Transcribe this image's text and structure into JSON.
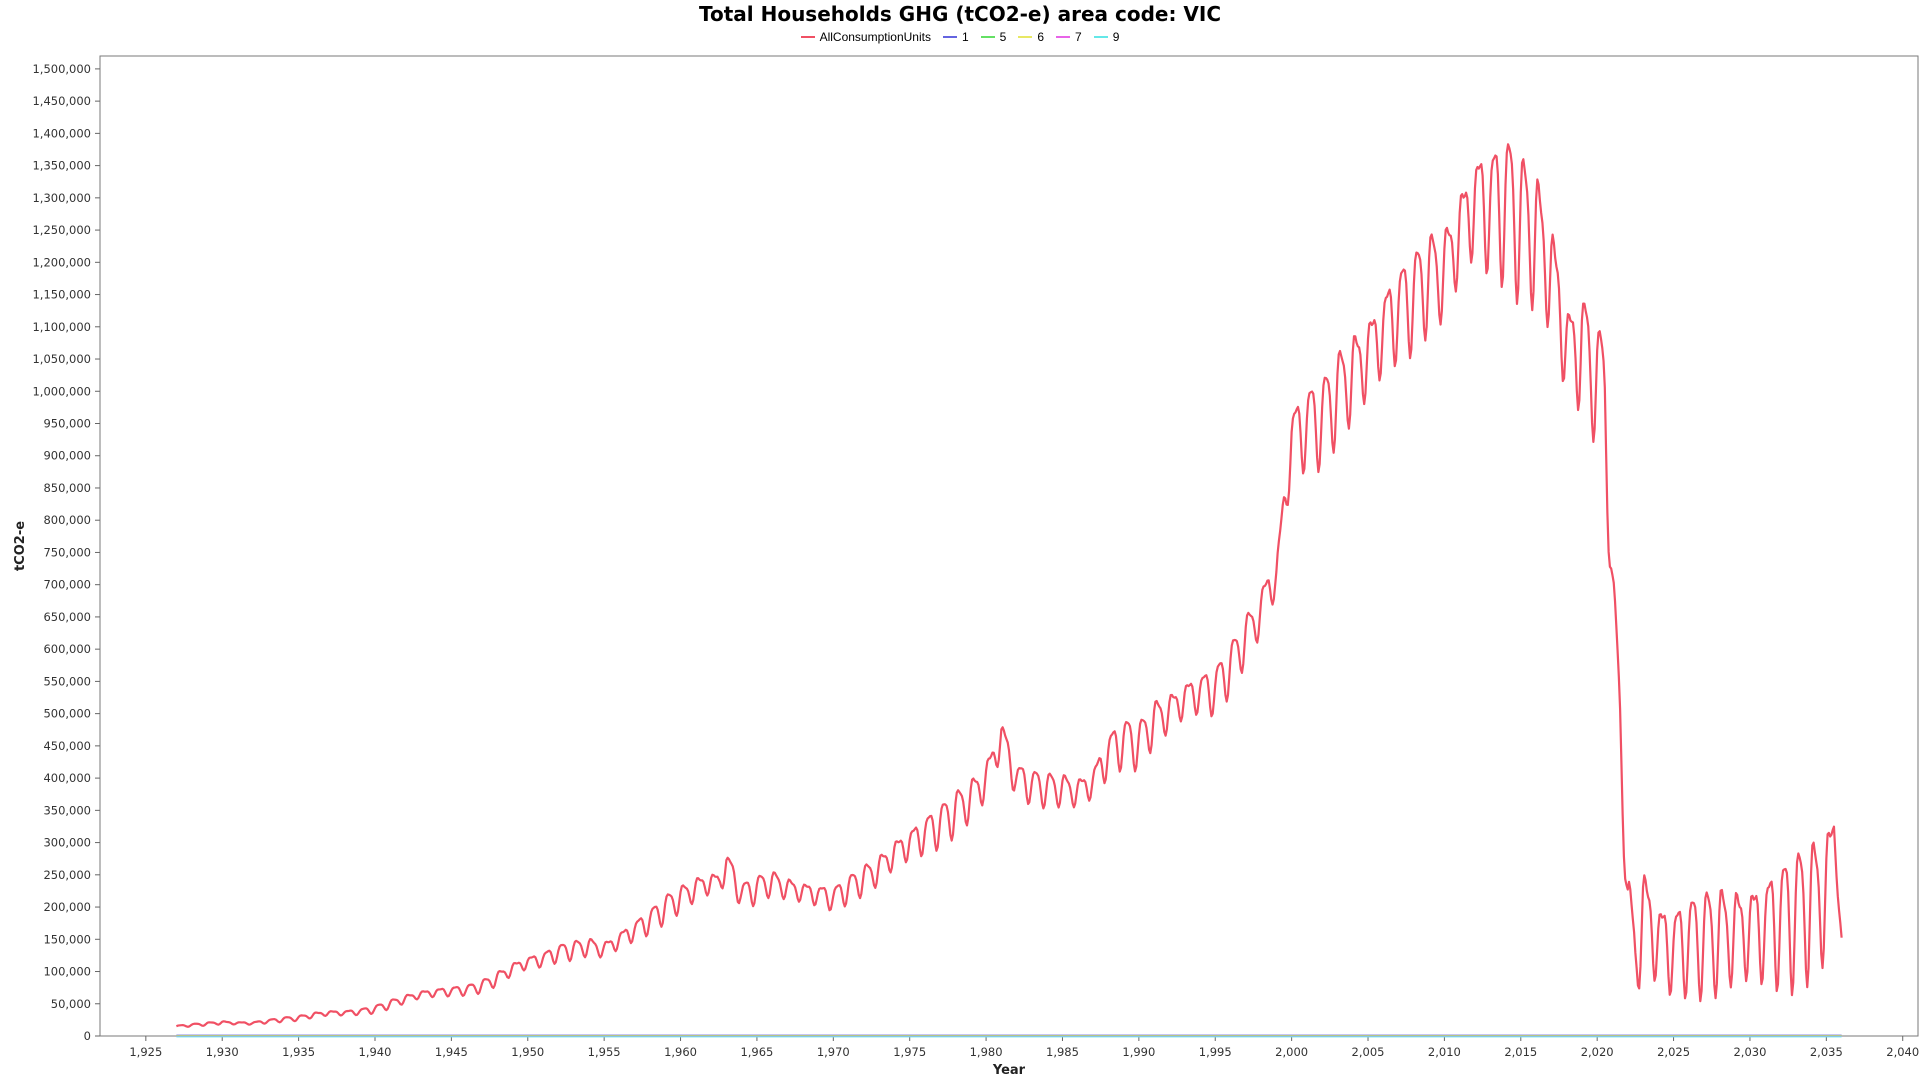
{
  "chart_data": {
    "type": "line",
    "title": "Total Households GHG (tCO2-e) area code: VIC",
    "xlabel": "Year",
    "ylabel": "tCO2-e",
    "xlim": [
      1922,
      2041
    ],
    "ylim": [
      0,
      1520000
    ],
    "x_ticks": [
      1925,
      1930,
      1935,
      1940,
      1945,
      1950,
      1955,
      1960,
      1965,
      1970,
      1975,
      1980,
      1985,
      1990,
      1995,
      2000,
      2005,
      2010,
      2015,
      2020,
      2025,
      2030,
      2035,
      2040
    ],
    "x_tick_labels": [
      "1,925",
      "1,930",
      "1,935",
      "1,940",
      "1,945",
      "1,950",
      "1,955",
      "1,960",
      "1,965",
      "1,970",
      "1,975",
      "1,980",
      "1,985",
      "1,990",
      "1,995",
      "2,000",
      "2,005",
      "2,010",
      "2,015",
      "2,020",
      "2,025",
      "2,030",
      "2,035",
      "2,040"
    ],
    "y_ticks": [
      0,
      50000,
      100000,
      150000,
      200000,
      250000,
      300000,
      350000,
      400000,
      450000,
      500000,
      550000,
      600000,
      650000,
      700000,
      750000,
      800000,
      850000,
      900000,
      950000,
      1000000,
      1050000,
      1100000,
      1150000,
      1200000,
      1250000,
      1300000,
      1350000,
      1400000,
      1450000,
      1500000
    ],
    "y_tick_labels": [
      "0",
      "50,000",
      "100,000",
      "150,000",
      "200,000",
      "250,000",
      "300,000",
      "350,000",
      "400,000",
      "450,000",
      "500,000",
      "550,000",
      "600,000",
      "650,000",
      "700,000",
      "750,000",
      "800,000",
      "850,000",
      "900,000",
      "950,000",
      "1,000,000",
      "1,050,000",
      "1,100,000",
      "1,150,000",
      "1,200,000",
      "1,250,000",
      "1,300,000",
      "1,350,000",
      "1,400,000",
      "1,450,000",
      "1,500,000"
    ],
    "legend_position": "top-center",
    "grid": false,
    "series": [
      {
        "name": "AllConsumptionUnits",
        "color": "#f05064",
        "x": [
          1927,
          1928,
          1929,
          1930,
          1931,
          1932,
          1933,
          1934,
          1935,
          1936,
          1937,
          1938,
          1939,
          1940,
          1941,
          1942,
          1943,
          1944,
          1945,
          1946,
          1947,
          1948,
          1949,
          1950,
          1951,
          1952,
          1953,
          1954,
          1955,
          1956,
          1957,
          1958,
          1959,
          1960,
          1961,
          1962,
          1962.5,
          1963,
          1964,
          1965,
          1966,
          1967,
          1968,
          1969,
          1970,
          1971,
          1972,
          1973,
          1974,
          1975,
          1976,
          1977,
          1978,
          1979,
          1980,
          1980.5,
          1981,
          1981.5,
          1982,
          1983,
          1984,
          1985,
          1986,
          1987,
          1988,
          1989,
          1990,
          1991,
          1992,
          1993,
          1994,
          1995,
          1996,
          1997,
          1998,
          1998.5,
          1999,
          2000,
          2001,
          2002,
          2003,
          2004,
          2005,
          2006,
          2007,
          2008,
          2009,
          2010,
          2011,
          2012,
          2013,
          2014,
          2015,
          2016,
          2017,
          2018,
          2018.5,
          2019,
          2019.5,
          2020,
          2020.5,
          2021,
          2021.5,
          2022,
          2022.5,
          2023,
          2024,
          2025,
          2026,
          2027,
          2028,
          2029,
          2030,
          2031,
          2032,
          2033,
          2034,
          2035,
          2035.5,
          2036
        ],
        "values": [
          15000,
          17000,
          19000,
          21000,
          20000,
          20000,
          23000,
          26000,
          28000,
          33000,
          36000,
          36000,
          38000,
          42000,
          50000,
          58000,
          65000,
          68000,
          70000,
          72000,
          78000,
          90000,
          105000,
          115000,
          120000,
          130000,
          135000,
          140000,
          135000,
          150000,
          165000,
          180000,
          200000,
          215000,
          230000,
          240000,
          235000,
          270000,
          220000,
          230000,
          240000,
          230000,
          225000,
          220000,
          215000,
          230000,
          245000,
          260000,
          285000,
          300000,
          315000,
          330000,
          350000,
          370000,
          400000,
          430000,
          470000,
          430000,
          400000,
          390000,
          385000,
          385000,
          380000,
          395000,
          440000,
          460000,
          455000,
          490000,
          505000,
          525000,
          535000,
          540000,
          575000,
          620000,
          660000,
          700000,
          710000,
          930000,
          950000,
          960000,
          1000000,
          1030000,
          1060000,
          1100000,
          1130000,
          1150000,
          1180000,
          1190000,
          1250000,
          1300000,
          1290000,
          1300000,
          1270000,
          1250000,
          1190000,
          1080000,
          1050000,
          1100000,
          1020000,
          1050000,
          980000,
          700000,
          500000,
          200000,
          120000,
          200000,
          150000,
          140000,
          150000,
          155000,
          160000,
          165000,
          170000,
          175000,
          185000,
          195000,
          210000,
          230000,
          320000,
          150000
        ],
        "amplitude": [
          1500,
          2000,
          2500,
          3000,
          2500,
          2500,
          3000,
          3500,
          4000,
          4500,
          4500,
          4500,
          5000,
          6000,
          7000,
          7000,
          7000,
          8000,
          8000,
          8000,
          10000,
          12000,
          12000,
          12000,
          13000,
          14000,
          15000,
          15000,
          15000,
          17000,
          18000,
          20000,
          22000,
          22000,
          22000,
          22000,
          25000,
          25000,
          22000,
          22000,
          20000,
          20000,
          20000,
          20000,
          20000,
          22000,
          24000,
          26000,
          28000,
          30000,
          32000,
          34000,
          36000,
          36000,
          38000,
          38000,
          35000,
          35000,
          30000,
          28000,
          28000,
          28000,
          28000,
          30000,
          40000,
          40000,
          38000,
          38000,
          36000,
          36000,
          36000,
          40000,
          40000,
          40000,
          40000,
          40000,
          40000,
          60000,
          70000,
          70000,
          75000,
          80000,
          80000,
          80000,
          80000,
          80000,
          80000,
          80000,
          90000,
          100000,
          110000,
          120000,
          120000,
          120000,
          110000,
          100000,
          100000,
          110000,
          110000,
          90000,
          100000,
          50000,
          60000,
          70000,
          90000,
          90000,
          85000,
          80000,
          80000,
          85000,
          90000,
          90000,
          95000,
          100000,
          105000,
          110000,
          115000,
          120000,
          30000,
          10000
        ]
      },
      {
        "name": "1",
        "color": "#6464e0",
        "values": [
          0,
          0
        ]
      },
      {
        "name": "5",
        "color": "#64e064",
        "values": [
          0,
          0
        ]
      },
      {
        "name": "6",
        "color": "#e8e864",
        "values": [
          0,
          0
        ]
      },
      {
        "name": "7",
        "color": "#e864e8",
        "values": [
          0,
          0
        ]
      },
      {
        "name": "9",
        "color": "#64e8e8",
        "values": [
          0,
          0
        ]
      }
    ],
    "flat_series_x_range": [
      1927,
      2036
    ]
  }
}
